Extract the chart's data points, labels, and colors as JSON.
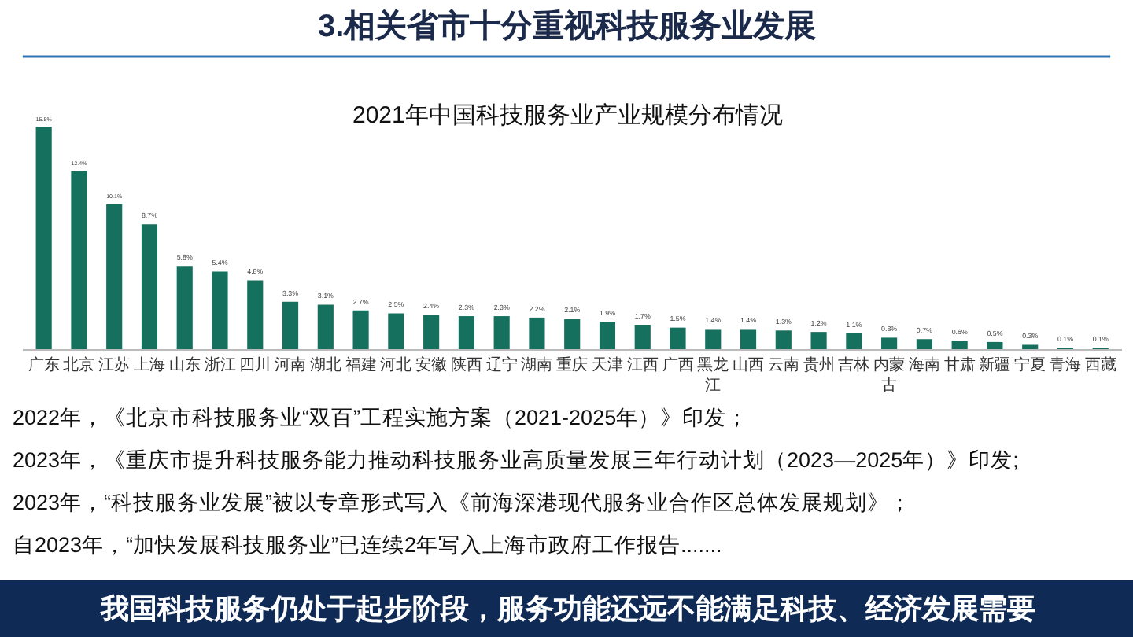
{
  "chart_data": {
    "type": "bar",
    "title": "3.相关省市十分重视科技服务业发展",
    "subtitle": "2021年中国科技服务业产业规模分布情况",
    "categories": [
      "广东",
      "北京",
      "江苏",
      "上海",
      "山东",
      "浙江",
      "四川",
      "河南",
      "湖北",
      "福建",
      "河北",
      "安徽",
      "陕西",
      "辽宁",
      "湖南",
      "重庆",
      "天津",
      "江西",
      "广西",
      "黑龙江",
      "山西",
      "云南",
      "贵州",
      "吉林",
      "内蒙古",
      "海南",
      "甘肃",
      "新疆",
      "宁夏",
      "青海",
      "西藏"
    ],
    "values": [
      15.5,
      12.4,
      10.1,
      8.7,
      5.8,
      5.4,
      4.8,
      3.3,
      3.1,
      2.7,
      2.5,
      2.4,
      2.3,
      2.3,
      2.2,
      2.1,
      1.9,
      1.7,
      1.5,
      1.4,
      1.4,
      1.3,
      1.2,
      1.1,
      0.8,
      0.7,
      0.6,
      0.5,
      0.3,
      0.1,
      0.1
    ],
    "value_labels": [
      "15.5%",
      "12.4%",
      "10.1%",
      "8.7%",
      "5.8%",
      "5.4%",
      "4.8%",
      "3.3%",
      "3.1%",
      "2.7%",
      "2.5%",
      "2.4%",
      "2.3%",
      "2.3%",
      "2.2%",
      "2.1%",
      "1.9%",
      "1.7%",
      "1.5%",
      "1.4%",
      "1.4%",
      "1.3%",
      "1.2%",
      "1.1%",
      "0.8%",
      "0.7%",
      "0.6%",
      "0.5%",
      "0.3%",
      "0.1%",
      "0.1%"
    ],
    "color": "#16705e",
    "annotations": [
      "2022年，《北京市科技服务业“双百”工程实施方案（2021-2025年）》印发；",
      "2023年，《重庆市提升科技服务能力推动科技服务业高质量发展三年行动计划（2023—2025年）》印发;",
      "2023年，“科技服务业发展”被以专章形式写入《前海深港现代服务业合作区总体发展规划》；",
      "自2023年，“加快发展科技服务业”已连续2年写入上海市政府工作报告.......",
      "我国科技服务仍处于起步阶段，服务功能还远不能满足科技、经济发展需要"
    ],
    "legend": false
  }
}
